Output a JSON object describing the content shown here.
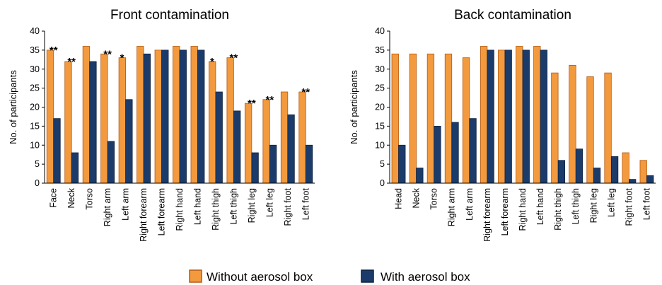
{
  "chart_data": [
    {
      "type": "bar",
      "title": "Front contamination",
      "ylabel": "No. of participants",
      "ylim": [
        0,
        40
      ],
      "yticks": [
        "0",
        "5",
        "10",
        "15",
        "20",
        "25",
        "30",
        "35",
        "40"
      ],
      "categories": [
        "Face",
        "Neck",
        "Torso",
        "Right arm",
        "Left arm",
        "Right forearm",
        "Left forearm",
        "Right hand",
        "Left hand",
        "Right thigh",
        "Left thigh",
        "Right leg",
        "Left leg",
        "Right foot",
        "Left foot"
      ],
      "series": [
        {
          "name": "Without aerosol box",
          "color": "#F39A3E",
          "values": [
            35,
            32,
            36,
            34,
            33,
            36,
            35,
            36,
            36,
            32,
            33,
            21,
            22,
            24,
            24
          ]
        },
        {
          "name": "With aerosol box",
          "color": "#1B3C6B",
          "values": [
            17,
            8,
            32,
            11,
            22,
            34,
            35,
            35,
            35,
            24,
            19,
            8,
            10,
            18,
            10
          ]
        }
      ],
      "annotations": [
        "**",
        "**",
        "",
        "**",
        "*",
        "",
        "",
        "",
        "",
        "*",
        "**",
        "**",
        "**",
        "",
        "**"
      ]
    },
    {
      "type": "bar",
      "title": "Back contamination",
      "ylabel": "No. of participants",
      "ylim": [
        0,
        40
      ],
      "yticks": [
        "0",
        "5",
        "10",
        "15",
        "20",
        "25",
        "30",
        "35",
        "40"
      ],
      "categories": [
        "Head",
        "Neck",
        "Torso",
        "Right arm",
        "Left arm",
        "Right forearm",
        "Left forearm",
        "Right hand",
        "Left hand",
        "Right thigh",
        "Left thigh",
        "Right leg",
        "Left leg",
        "Right foot",
        "Left foot"
      ],
      "series": [
        {
          "name": "Without aerosol box",
          "color": "#F39A3E",
          "values": [
            34,
            34,
            34,
            34,
            33,
            36,
            35,
            36,
            36,
            29,
            31,
            28,
            29,
            8,
            6
          ]
        },
        {
          "name": "With aerosol box",
          "color": "#1B3C6B",
          "values": [
            10,
            4,
            15,
            16,
            17,
            35,
            35,
            35,
            35,
            6,
            9,
            4,
            7,
            1,
            2
          ]
        }
      ],
      "annotations": []
    }
  ],
  "legend": {
    "items": [
      {
        "label": "Without aerosol box",
        "color": "#F39A3E",
        "border": "#B65A10"
      },
      {
        "label": "With aerosol box",
        "color": "#1B3C6B",
        "border": "#0E2240"
      }
    ]
  }
}
